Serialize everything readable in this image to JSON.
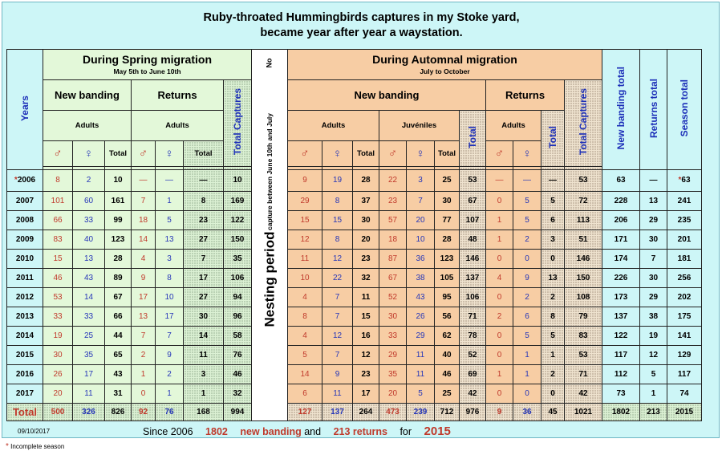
{
  "title_line1": "Ruby-throated Hummingbirds captures in my Stoke yard,",
  "title_line2": "became year after year a waystation.",
  "spring": {
    "title": "During Spring migration",
    "subtitle": "May 5th to June 10th",
    "new_banding": "New banding",
    "returns": "Returns",
    "adults": "Adults",
    "total_captures": "Total Captures"
  },
  "autumn": {
    "title": "During Automnal migration",
    "subtitle": "July to October",
    "new_banding": "New banding",
    "returns": "Returns",
    "adults": "Adults",
    "juveniles": "Juvéniles",
    "total": "Total",
    "total_captures": "Total Captures"
  },
  "nesting": {
    "no": "No",
    "line": "capture between June 10th and July",
    "title": "Nesting period"
  },
  "years_label": "Years",
  "male_symbol": "♂",
  "female_symbol": "♀",
  "total_label": "Total",
  "col_new_banding_total": "New banding total",
  "col_returns_total": "Returns total",
  "col_season_total": "Season total",
  "rows": [
    {
      "year": "2006",
      "star": "*",
      "s": [
        "8",
        "2",
        "10",
        "—",
        "—",
        "—",
        "10"
      ],
      "a": [
        "9",
        "19",
        "28",
        "22",
        "3",
        "25",
        "53",
        "—",
        "—",
        "—",
        "53"
      ],
      "nb": "63",
      "rt": "—",
      "st": "63",
      "st_star": "*"
    },
    {
      "year": "2007",
      "star": "",
      "s": [
        "101",
        "60",
        "161",
        "7",
        "1",
        "8",
        "169"
      ],
      "a": [
        "29",
        "8",
        "37",
        "23",
        "7",
        "30",
        "67",
        "0",
        "5",
        "5",
        "72"
      ],
      "nb": "228",
      "rt": "13",
      "st": "241",
      "st_star": ""
    },
    {
      "year": "2008",
      "star": "",
      "s": [
        "66",
        "33",
        "99",
        "18",
        "5",
        "23",
        "122"
      ],
      "a": [
        "15",
        "15",
        "30",
        "57",
        "20",
        "77",
        "107",
        "1",
        "5",
        "6",
        "113"
      ],
      "nb": "206",
      "rt": "29",
      "st": "235",
      "st_star": ""
    },
    {
      "year": "2009",
      "star": "",
      "s": [
        "83",
        "40",
        "123",
        "14",
        "13",
        "27",
        "150"
      ],
      "a": [
        "12",
        "8",
        "20",
        "18",
        "10",
        "28",
        "48",
        "1",
        "2",
        "3",
        "51"
      ],
      "nb": "171",
      "rt": "30",
      "st": "201",
      "st_star": ""
    },
    {
      "year": "2010",
      "star": "",
      "s": [
        "15",
        "13",
        "28",
        "4",
        "3",
        "7",
        "35"
      ],
      "a": [
        "11",
        "12",
        "23",
        "87",
        "36",
        "123",
        "146",
        "0",
        "0",
        "0",
        "146"
      ],
      "nb": "174",
      "rt": "7",
      "st": "181",
      "st_star": ""
    },
    {
      "year": "2011",
      "star": "",
      "s": [
        "46",
        "43",
        "89",
        "9",
        "8",
        "17",
        "106"
      ],
      "a": [
        "10",
        "22",
        "32",
        "67",
        "38",
        "105",
        "137",
        "4",
        "9",
        "13",
        "150"
      ],
      "nb": "226",
      "rt": "30",
      "st": "256",
      "st_star": ""
    },
    {
      "year": "2012",
      "star": "",
      "s": [
        "53",
        "14",
        "67",
        "17",
        "10",
        "27",
        "94"
      ],
      "a": [
        "4",
        "7",
        "11",
        "52",
        "43",
        "95",
        "106",
        "0",
        "2",
        "2",
        "108"
      ],
      "nb": "173",
      "rt": "29",
      "st": "202",
      "st_star": ""
    },
    {
      "year": "2013",
      "star": "",
      "s": [
        "33",
        "33",
        "66",
        "13",
        "17",
        "30",
        "96"
      ],
      "a": [
        "8",
        "7",
        "15",
        "30",
        "26",
        "56",
        "71",
        "2",
        "6",
        "8",
        "79"
      ],
      "nb": "137",
      "rt": "38",
      "st": "175",
      "st_star": ""
    },
    {
      "year": "2014",
      "star": "",
      "s": [
        "19",
        "25",
        "44",
        "7",
        "7",
        "14",
        "58"
      ],
      "a": [
        "4",
        "12",
        "16",
        "33",
        "29",
        "62",
        "78",
        "0",
        "5",
        "5",
        "83"
      ],
      "nb": "122",
      "rt": "19",
      "st": "141",
      "st_star": ""
    },
    {
      "year": "2015",
      "star": "",
      "s": [
        "30",
        "35",
        "65",
        "2",
        "9",
        "11",
        "76"
      ],
      "a": [
        "5",
        "7",
        "12",
        "29",
        "11",
        "40",
        "52",
        "0",
        "1",
        "1",
        "53"
      ],
      "nb": "117",
      "rt": "12",
      "st": "129",
      "st_star": ""
    },
    {
      "year": "2016",
      "star": "",
      "s": [
        "26",
        "17",
        "43",
        "1",
        "2",
        "3",
        "46"
      ],
      "a": [
        "14",
        "9",
        "23",
        "35",
        "11",
        "46",
        "69",
        "1",
        "1",
        "2",
        "71"
      ],
      "nb": "112",
      "rt": "5",
      "st": "117",
      "st_star": ""
    },
    {
      "year": "2017",
      "star": "",
      "s": [
        "20",
        "11",
        "31",
        "0",
        "1",
        "1",
        "32"
      ],
      "a": [
        "6",
        "11",
        "17",
        "20",
        "5",
        "25",
        "42",
        "0",
        "0",
        "0",
        "42"
      ],
      "nb": "73",
      "rt": "1",
      "st": "74",
      "st_star": ""
    }
  ],
  "totals": {
    "label": "Total",
    "s": [
      "500",
      "326",
      "826",
      "92",
      "76",
      "168",
      "994"
    ],
    "a": [
      "127",
      "137",
      "264",
      "473",
      "239",
      "712",
      "976",
      "9",
      "36",
      "45",
      "1021"
    ],
    "nb": "1802",
    "rt": "213",
    "st": "2015"
  },
  "footer": {
    "date": "09/10/2017",
    "since": "Since 2006",
    "nb_value": "1802",
    "nb_text": "new banding",
    "and": "and",
    "rt_text": "213 returns",
    "for": "for",
    "st_value": "2015"
  },
  "note_star": "*",
  "note": "Incomplete season",
  "colors": {
    "spring_bg": "#e3f8d9",
    "autumn_bg": "#f7cda4",
    "frame_bg": "#cdf6f7",
    "male": "#c0392b",
    "female": "#2636b8",
    "label_blue": "#1c2fb8"
  }
}
